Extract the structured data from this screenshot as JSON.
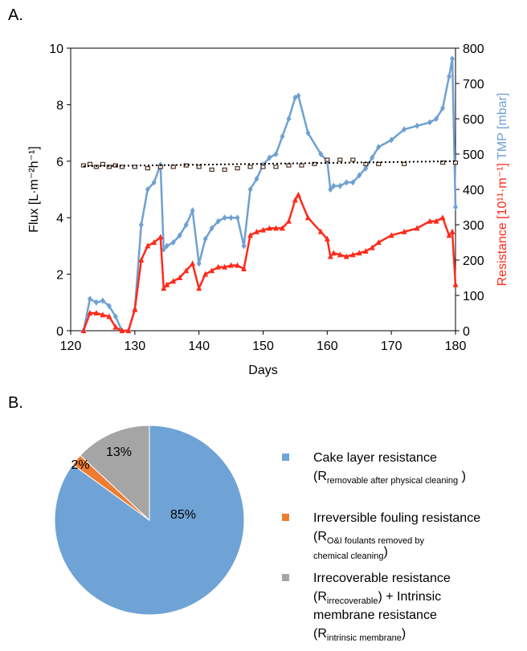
{
  "chart_data": [
    {
      "type": "line",
      "panel": "A.",
      "xlabel": "Days",
      "ylabel": "Flux [L·m⁻²h⁻¹]",
      "y2labels": [
        {
          "text": "Resistance [10¹¹·m⁻¹]",
          "color": "#ff2a1a"
        },
        {
          "text": "TMP [mbar]",
          "color": "#6fa0d3"
        }
      ],
      "xlim": [
        120,
        180
      ],
      "xticks": [
        120,
        130,
        140,
        150,
        160,
        170,
        180
      ],
      "ylim": [
        0,
        10
      ],
      "yticks": [
        0,
        2,
        4,
        6,
        8,
        10
      ],
      "y2lim": [
        0,
        800
      ],
      "y2ticks": [
        0,
        100,
        200,
        300,
        400,
        500,
        600,
        700,
        800
      ],
      "series": [
        {
          "color": "#6fa0d3",
          "axis": "y2",
          "marker": "diamond",
          "line": true,
          "x": [
            122,
            123,
            124,
            125,
            126,
            127,
            128,
            129,
            130,
            131,
            132,
            133,
            134,
            134.5,
            135,
            136,
            137,
            138,
            139,
            140,
            141,
            142,
            143,
            144,
            145,
            146,
            147,
            148,
            149,
            150,
            151,
            152,
            153,
            154,
            155,
            155.5,
            157,
            159,
            160,
            160.5,
            161,
            162,
            163,
            164,
            165,
            166,
            167,
            168,
            170,
            172,
            174,
            176,
            177,
            178,
            179,
            179.5,
            180
          ],
          "values": [
            0,
            90,
            80,
            85,
            70,
            40,
            0,
            0,
            60,
            300,
            400,
            420,
            470,
            230,
            240,
            250,
            270,
            300,
            340,
            190,
            260,
            290,
            310,
            320,
            320,
            320,
            240,
            400,
            430,
            470,
            490,
            500,
            550,
            600,
            660,
            665,
            560,
            500,
            480,
            400,
            410,
            410,
            420,
            420,
            440,
            460,
            490,
            520,
            540,
            570,
            580,
            590,
            600,
            630,
            720,
            770,
            350
          ]
        },
        {
          "color": "#ff2a1a",
          "axis": "y2",
          "marker": "triangle",
          "line": true,
          "x": [
            122,
            123,
            124,
            125,
            126,
            127,
            128,
            129,
            130,
            131,
            132,
            133,
            134,
            134.5,
            135,
            136,
            137,
            138,
            139,
            140,
            141,
            142,
            143,
            144,
            145,
            146,
            147,
            148,
            149,
            150,
            151,
            152,
            153,
            154,
            155,
            155.5,
            157,
            159,
            160,
            160.5,
            161,
            162,
            163,
            164,
            165,
            166,
            167,
            168,
            170,
            172,
            174,
            176,
            177,
            178,
            179,
            179.5,
            180
          ],
          "values": [
            0,
            50,
            50,
            45,
            40,
            10,
            0,
            0,
            60,
            200,
            240,
            250,
            265,
            120,
            130,
            140,
            150,
            170,
            190,
            120,
            160,
            170,
            180,
            180,
            185,
            185,
            175,
            270,
            280,
            285,
            290,
            290,
            290,
            310,
            370,
            385,
            320,
            280,
            260,
            210,
            220,
            215,
            210,
            215,
            220,
            225,
            235,
            250,
            270,
            280,
            290,
            310,
            310,
            320,
            270,
            280,
            130
          ]
        },
        {
          "color": "#4a2e1e",
          "marker": "square",
          "line": false,
          "x": [
            122,
            123,
            124,
            125,
            126,
            127,
            128,
            130,
            132,
            134,
            136,
            138,
            140,
            142,
            144,
            146,
            148,
            150,
            152,
            154,
            156,
            158,
            160,
            162,
            164,
            166,
            168,
            172,
            178,
            180
          ],
          "values": [
            5.85,
            5.9,
            5.8,
            5.9,
            5.8,
            5.85,
            5.8,
            5.8,
            5.75,
            5.8,
            5.8,
            5.85,
            5.8,
            5.7,
            5.7,
            5.75,
            5.8,
            5.8,
            5.8,
            5.85,
            5.85,
            5.9,
            6.05,
            6.05,
            6.05,
            5.9,
            5.9,
            5.9,
            5.95,
            5.95
          ]
        },
        {
          "color": "#000000",
          "marker": "none",
          "line": true,
          "dash": "dotted",
          "x": [
            122,
            180
          ],
          "values": [
            5.82,
            6.0
          ]
        }
      ]
    },
    {
      "type": "pie",
      "panel": "B.",
      "categories": [
        "Cake layer resistance",
        "Irreversible fouling resistance",
        "Irrecoverable resistance"
      ],
      "values": [
        85,
        2,
        13
      ],
      "value_labels": [
        "85%",
        "2%",
        "13%"
      ],
      "colors": [
        "#6fa3d6",
        "#ed7d31",
        "#a5a5a5"
      ],
      "notes": [
        [
          [
            {
              "text": "(R"
            },
            {
              "text": "removable after physical cleaning",
              "sub": true
            },
            {
              "text": " )"
            }
          ]
        ],
        [
          [
            {
              "text": "(R"
            },
            {
              "text": "O&I foulants removed by",
              "sub": true
            }
          ],
          [
            {
              "text": "chemical cleaning",
              "sub": true
            },
            {
              "text": ")"
            }
          ]
        ],
        [
          [
            {
              "text": "(R"
            },
            {
              "text": "irrecoverable",
              "sub": true
            },
            {
              "text": ") + Intrinsic"
            }
          ],
          [
            {
              "text": "membrane resistance"
            }
          ],
          [
            {
              "text": "(R"
            },
            {
              "text": "intrinsic membrane",
              "sub": true
            },
            {
              "text": ")"
            }
          ]
        ]
      ]
    }
  ]
}
